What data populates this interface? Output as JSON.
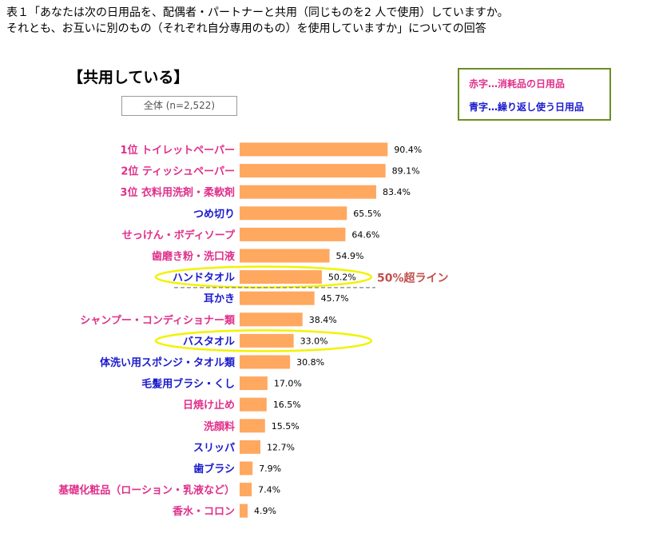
{
  "title_line1": "表１「あなたは次の日用品を、配偶者・パートナーと共用（同じものを2 人で使用）していますか。",
  "title_line2": "それとも、お互いに別のもの（それぞれ自分専用のもの）を使用していますか」についての回答",
  "heading": "【共用している】",
  "sample_label": "全体 (n=2,522)",
  "legend": {
    "red_text": "赤字…消耗品の日用品",
    "blue_text": "青字…繰り返し使う日用品",
    "red_color": "#e0308a",
    "blue_color": "#1a1acc"
  },
  "colors": {
    "bar": "#ffa860",
    "highlight_ellipse": "#f2f200",
    "threshold_label": "#c0504d",
    "dashed_line": "#808080"
  },
  "threshold_label": "50%超ライン",
  "chart_data": {
    "type": "bar",
    "orientation": "horizontal",
    "xlim": [
      0,
      100
    ],
    "grid": false,
    "threshold_after_index": 6,
    "highlighted_indices": [
      6,
      9
    ],
    "categories": [
      {
        "label": "1位 トイレットペーパー",
        "value": 90.4,
        "value_label": "90.4%",
        "group": "red"
      },
      {
        "label": "2位 ティッシュペーパー",
        "value": 89.1,
        "value_label": "89.1%",
        "group": "red"
      },
      {
        "label": "3位 衣料用洗剤・柔軟剤",
        "value": 83.4,
        "value_label": "83.4%",
        "group": "red"
      },
      {
        "label": "つめ切り",
        "value": 65.5,
        "value_label": "65.5%",
        "group": "blue"
      },
      {
        "label": "せっけん・ボディソープ",
        "value": 64.6,
        "value_label": "64.6%",
        "group": "red"
      },
      {
        "label": "歯磨き粉・洗口液",
        "value": 54.9,
        "value_label": "54.9%",
        "group": "red"
      },
      {
        "label": "ハンドタオル",
        "value": 50.2,
        "value_label": "50.2%",
        "group": "blue"
      },
      {
        "label": "耳かき",
        "value": 45.7,
        "value_label": "45.7%",
        "group": "blue"
      },
      {
        "label": "シャンプー・コンディショナー類",
        "value": 38.4,
        "value_label": "38.4%",
        "group": "red"
      },
      {
        "label": "バスタオル",
        "value": 33.0,
        "value_label": "33.0%",
        "group": "blue"
      },
      {
        "label": "体洗い用スポンジ・タオル類",
        "value": 30.8,
        "value_label": "30.8%",
        "group": "blue"
      },
      {
        "label": "毛髪用ブラシ・くし",
        "value": 17.0,
        "value_label": "17.0%",
        "group": "blue"
      },
      {
        "label": "日焼け止め",
        "value": 16.5,
        "value_label": "16.5%",
        "group": "red"
      },
      {
        "label": "洗顔料",
        "value": 15.5,
        "value_label": "15.5%",
        "group": "red"
      },
      {
        "label": "スリッパ",
        "value": 12.7,
        "value_label": "12.7%",
        "group": "blue"
      },
      {
        "label": "歯ブラシ",
        "value": 7.9,
        "value_label": "7.9%",
        "group": "blue"
      },
      {
        "label": "基礎化粧品（ローション・乳液など）",
        "value": 7.4,
        "value_label": "7.4%",
        "group": "red"
      },
      {
        "label": "香水・コロン",
        "value": 4.9,
        "value_label": "4.9%",
        "group": "red"
      }
    ]
  }
}
